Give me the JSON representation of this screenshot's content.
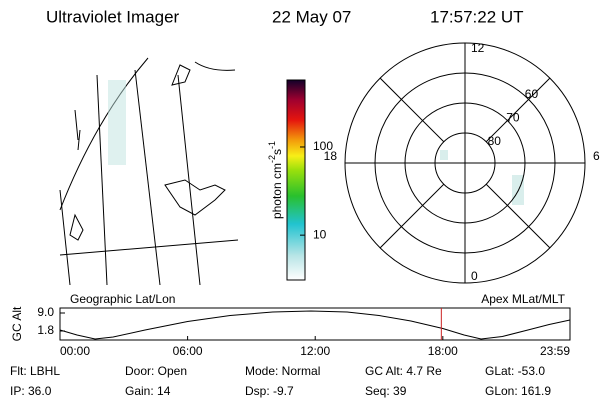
{
  "header": {
    "title": "Ultraviolet Imager",
    "date": "22 May 07",
    "time": "17:57:22 UT"
  },
  "colorbar": {
    "label": [
      "photon cm",
      "-2",
      "s",
      "-1"
    ],
    "lim": [
      3.1,
      575
    ],
    "log": true,
    "ticks": [
      10,
      100
    ]
  },
  "polar": {
    "rlim": [
      90,
      50
    ],
    "rings": [
      80,
      70,
      60
    ],
    "hours": [
      12,
      6,
      0,
      18
    ]
  },
  "chart_data": {
    "type": "line",
    "left_label": "Geographic Lat/Lon",
    "right_label": "Apex MLat/MLT",
    "ylabel": "GC Alt",
    "x": [
      0,
      0.8,
      1.65,
      2.5,
      4,
      6,
      8,
      10,
      11.8,
      13.5,
      15,
      16.5,
      18,
      19,
      19.8,
      20.8,
      22,
      23,
      23.98
    ],
    "series": [
      {
        "name": "GC Alt",
        "color": "#000000",
        "values": [
          2.2,
          0.2,
          -1.4,
          -0.6,
          2.2,
          5.6,
          8,
          9.4,
          9.8,
          9.4,
          8,
          5.8,
          2.8,
          0.2,
          -1.4,
          -0.4,
          2.2,
          4.4,
          6.2
        ]
      }
    ],
    "marker_x": 17.93,
    "marker_color": "#cc2222",
    "xlim": [
      0,
      23.98
    ],
    "xticks": [
      {
        "value": 0,
        "label": "00:00"
      },
      {
        "value": 6,
        "label": "06:00"
      },
      {
        "value": 12,
        "label": "12:00"
      },
      {
        "value": 18,
        "label": "18:00"
      },
      {
        "value": 23.98,
        "label": "23:59"
      }
    ],
    "ylim": [
      -1.8,
      11
    ],
    "yticks": [
      1.8,
      {
        "value": 9,
        "label": "9.0"
      }
    ]
  },
  "footer": [
    [
      "Flt: LBHL",
      "Door: Open",
      "Mode: Normal",
      "GC Alt: 4.7 Re",
      "GLat: -53.0"
    ],
    [
      "IP: 36.0",
      "Gain: 14",
      "Dsp:  -9.7",
      "Seq: 39",
      "GLon: 161.9"
    ]
  ]
}
